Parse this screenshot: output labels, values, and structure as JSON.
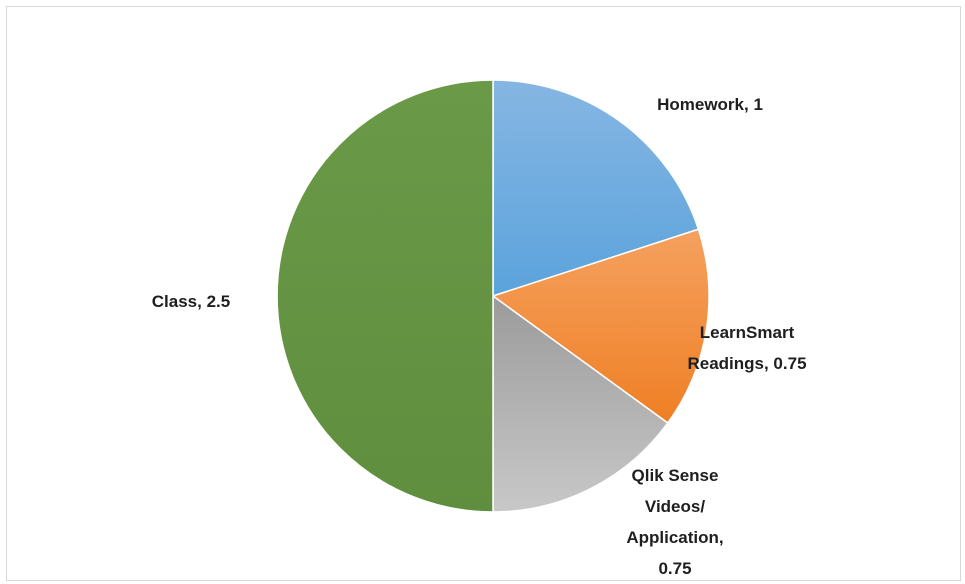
{
  "chart_data": {
    "type": "pie",
    "title": "",
    "slices": [
      {
        "name": "Homework",
        "value": 1,
        "label_lines": [
          "Homework, 1"
        ],
        "color_top": "#86b6e3",
        "color_bottom": "#5ba3dc"
      },
      {
        "name": "LearnSmart Readings",
        "value": 0.75,
        "label_lines": [
          "LearnSmart",
          "Readings, 0.75"
        ],
        "color_top": "#f5a15f",
        "color_bottom": "#ef7f24"
      },
      {
        "name": "Qlik Sense Videos/ Application",
        "value": 0.75,
        "label_lines": [
          "Qlik Sense",
          "Videos/",
          "Application,",
          "0.75"
        ],
        "color_top": "#9b9b9b",
        "color_bottom": "#c8c8c8"
      },
      {
        "name": "Class",
        "value": 2.5,
        "label_lines": [
          "Class, 2.5"
        ],
        "color_top": "#6a9a48",
        "color_bottom": "#5f8f3e"
      }
    ],
    "start_angle": "12 o'clock",
    "direction": "clockwise",
    "legend": "none",
    "data_labels": "category name and value, outside slices"
  }
}
